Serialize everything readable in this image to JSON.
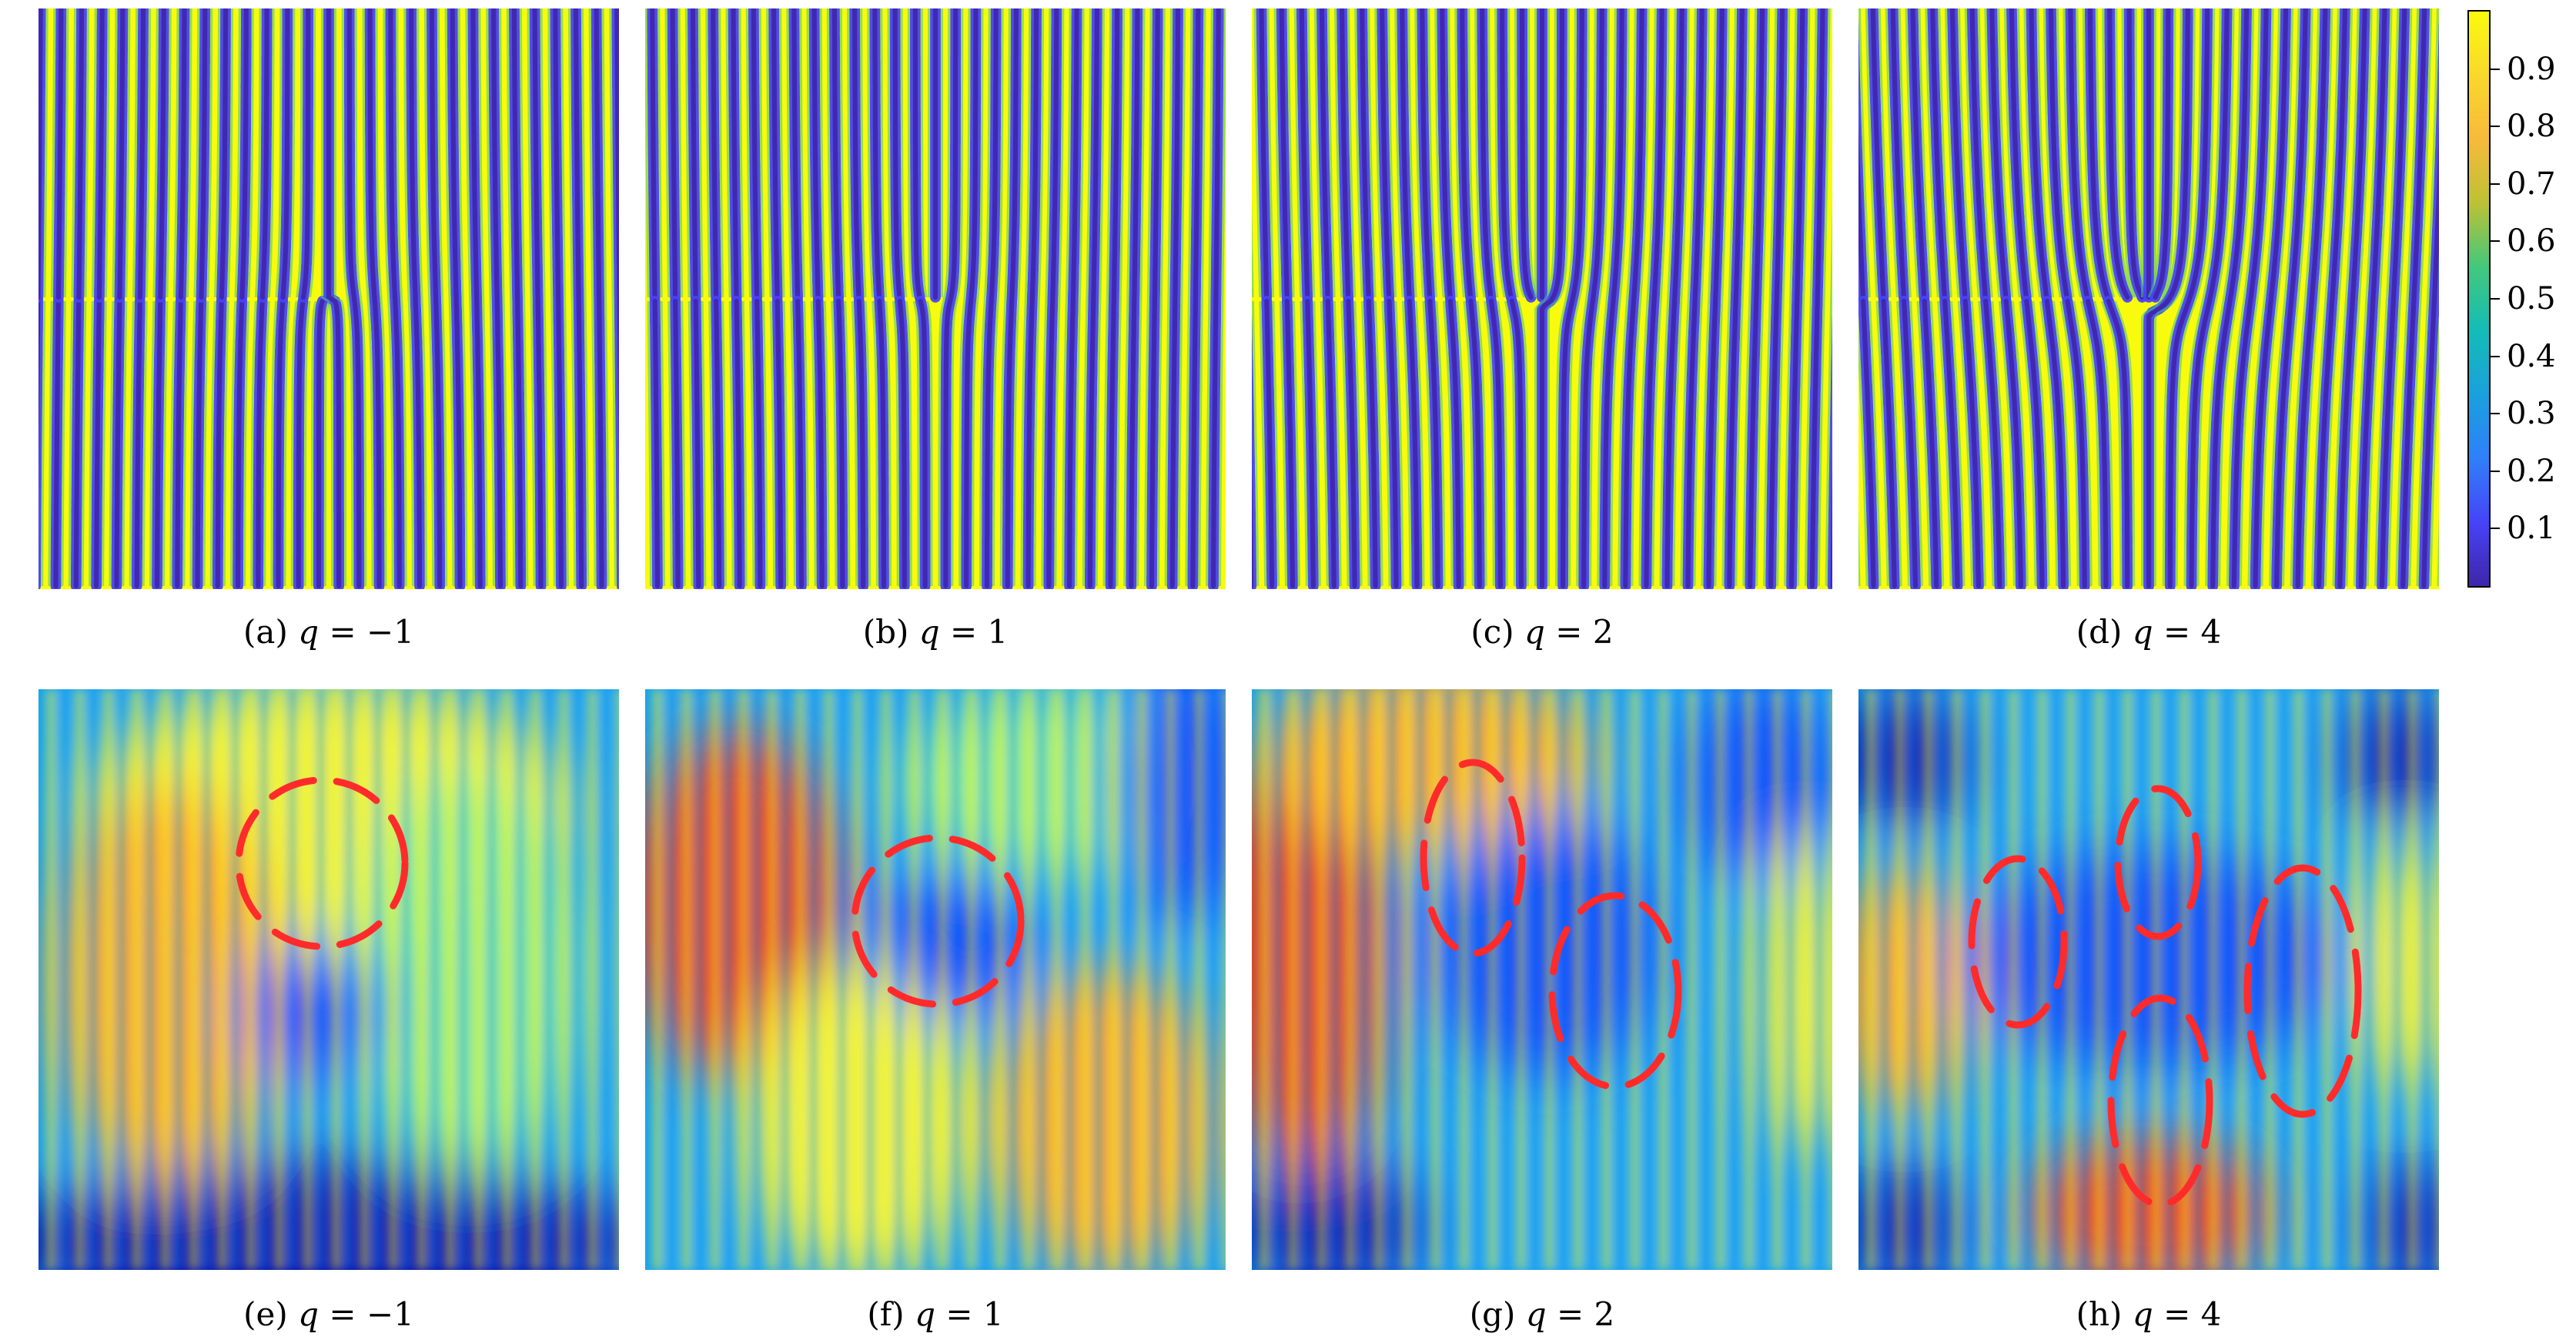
{
  "colormap": [
    "#3e26a8",
    "#4743f8",
    "#2f80fa",
    "#1aa0dc",
    "#14bcb7",
    "#43c87c",
    "#bdc135",
    "#f7ba3c",
    "#f9d82b",
    "#f9fb0e"
  ],
  "heatmap": [
    "#0000a6",
    "#0033ff",
    "#16a3f0",
    "#37d8f4",
    "#8cf08a",
    "#f5f534",
    "#ff9f1a",
    "#f03412",
    "#b20000"
  ],
  "dash_color": "#ff2b2b",
  "colorbar": {
    "ticks": [
      "0.1",
      "0.2",
      "0.3",
      "0.4",
      "0.5",
      "0.6",
      "0.7",
      "0.8",
      "0.9"
    ],
    "values": [
      0.1,
      0.2,
      0.3,
      0.4,
      0.5,
      0.6,
      0.7,
      0.8,
      0.9
    ]
  },
  "panels": [
    {
      "tag": "(a)",
      "var": "q",
      "eq": "=",
      "value": "−1",
      "q": -1,
      "type": "fringe"
    },
    {
      "tag": "(b)",
      "var": "q",
      "eq": "=",
      "value": "1",
      "q": 1,
      "type": "fringe"
    },
    {
      "tag": "(c)",
      "var": "q",
      "eq": "=",
      "value": "2",
      "q": 2,
      "type": "fringe"
    },
    {
      "tag": "(d)",
      "var": "q",
      "eq": "=",
      "value": "4",
      "q": 4,
      "type": "fringe"
    },
    {
      "tag": "(e)",
      "var": "q",
      "eq": "=",
      "value": "−1",
      "q": -1,
      "type": "measured"
    },
    {
      "tag": "(f)",
      "var": "q",
      "eq": "=",
      "value": "1",
      "q": 1,
      "type": "measured"
    },
    {
      "tag": "(g)",
      "var": "q",
      "eq": "=",
      "value": "2",
      "q": 2,
      "type": "measured"
    },
    {
      "tag": "(h)",
      "var": "q",
      "eq": "=",
      "value": "4",
      "q": 4,
      "type": "measured"
    }
  ]
}
